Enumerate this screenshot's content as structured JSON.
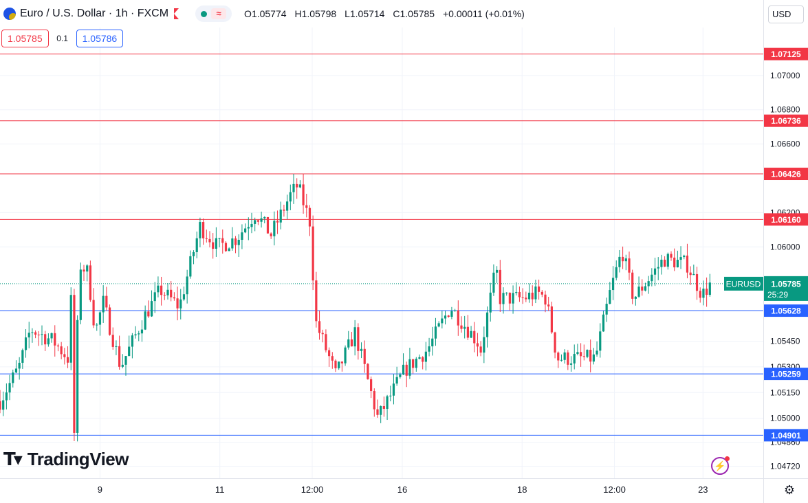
{
  "legend": {
    "title": "Euro / U.S. Dollar · 1h · FXCM",
    "ohlc": [
      {
        "label": "O",
        "value": "1.05774"
      },
      {
        "label": "H",
        "value": "1.05798"
      },
      {
        "label": "L",
        "value": "1.05714"
      },
      {
        "label": "C",
        "value": "1.05785"
      }
    ],
    "change": "+0.00011 (+0.01%)",
    "symbol_icon": "eurusd-symbol-icon",
    "flag_icon": "flag-icon",
    "status_icon": "market-open-dot-icon",
    "wave_icon": "wave-icon"
  },
  "trade": {
    "sell": "1.05785",
    "spread": "0.1",
    "buy": "1.05786"
  },
  "currency": "USD",
  "logo": "TradingView",
  "colors": {
    "up": "#089981",
    "down": "#f23645",
    "resistance": "#f23645",
    "support": "#2962ff"
  },
  "chart_data": {
    "type": "candlestick",
    "symbol": "EURUSD",
    "interval": "1h",
    "ylim": [
      1.0465,
      1.0728
    ],
    "y_ticks": [
      "1.07000",
      "1.06800",
      "1.06600",
      "1.06200",
      "1.06000",
      "1.05450",
      "1.05300",
      "1.05150",
      "1.05000",
      "1.04860",
      "1.04720"
    ],
    "x_ticks": [
      {
        "label": "9",
        "frac": 0.131
      },
      {
        "label": "11",
        "frac": 0.288
      },
      {
        "label": "12:00",
        "frac": 0.409
      },
      {
        "label": "16",
        "frac": 0.527
      },
      {
        "label": "18",
        "frac": 0.684
      },
      {
        "label": "12:00",
        "frac": 0.805
      },
      {
        "label": "23",
        "frac": 0.921
      }
    ],
    "horizontal_levels": [
      {
        "value": "1.07125",
        "kind": "resistance"
      },
      {
        "value": "1.06736",
        "kind": "resistance"
      },
      {
        "value": "1.06426",
        "kind": "resistance"
      },
      {
        "value": "1.06160",
        "kind": "resistance"
      },
      {
        "value": "1.05628",
        "kind": "support"
      },
      {
        "value": "1.05259",
        "kind": "support"
      },
      {
        "value": "1.04901",
        "kind": "support"
      }
    ],
    "last_price": {
      "label": "EURUSD",
      "value": "1.05785",
      "countdown": "25:29"
    },
    "anchors": [
      [
        1.051,
        0.0
      ],
      [
        1.053,
        0.025
      ],
      [
        1.0552,
        0.04
      ],
      [
        1.0545,
        0.07
      ],
      [
        1.0535,
        0.089
      ],
      [
        1.0585,
        0.095
      ],
      [
        1.0488,
        0.097
      ],
      [
        1.059,
        0.104
      ],
      [
        1.0585,
        0.115
      ],
      [
        1.055,
        0.125
      ],
      [
        1.0568,
        0.135
      ],
      [
        1.053,
        0.158
      ],
      [
        1.056,
        0.19
      ],
      [
        1.0575,
        0.21
      ],
      [
        1.0565,
        0.235
      ],
      [
        1.0612,
        0.262
      ],
      [
        1.06,
        0.285
      ],
      [
        1.0605,
        0.31
      ],
      [
        1.062,
        0.335
      ],
      [
        1.0607,
        0.355
      ],
      [
        1.063,
        0.38
      ],
      [
        1.0636,
        0.39
      ],
      [
        1.0625,
        0.398
      ],
      [
        1.0612,
        0.408
      ],
      [
        1.0558,
        0.412
      ],
      [
        1.0525,
        0.44
      ],
      [
        1.055,
        0.465
      ],
      [
        1.0525,
        0.48
      ],
      [
        1.05,
        0.495
      ],
      [
        1.0528,
        0.53
      ],
      [
        1.054,
        0.56
      ],
      [
        1.0565,
        0.59
      ],
      [
        1.0545,
        0.625
      ],
      [
        1.054,
        0.63
      ],
      [
        1.0588,
        0.65
      ],
      [
        1.057,
        0.655
      ],
      [
        1.057,
        0.685
      ],
      [
        1.0573,
        0.705
      ],
      [
        1.057,
        0.715
      ],
      [
        1.0535,
        0.73
      ],
      [
        1.0535,
        0.78
      ],
      [
        1.0575,
        0.8
      ],
      [
        1.0598,
        0.815
      ],
      [
        1.057,
        0.83
      ],
      [
        1.0593,
        0.87
      ],
      [
        1.059,
        0.9
      ],
      [
        1.0572,
        0.92
      ],
      [
        1.0578,
        0.93
      ]
    ]
  }
}
